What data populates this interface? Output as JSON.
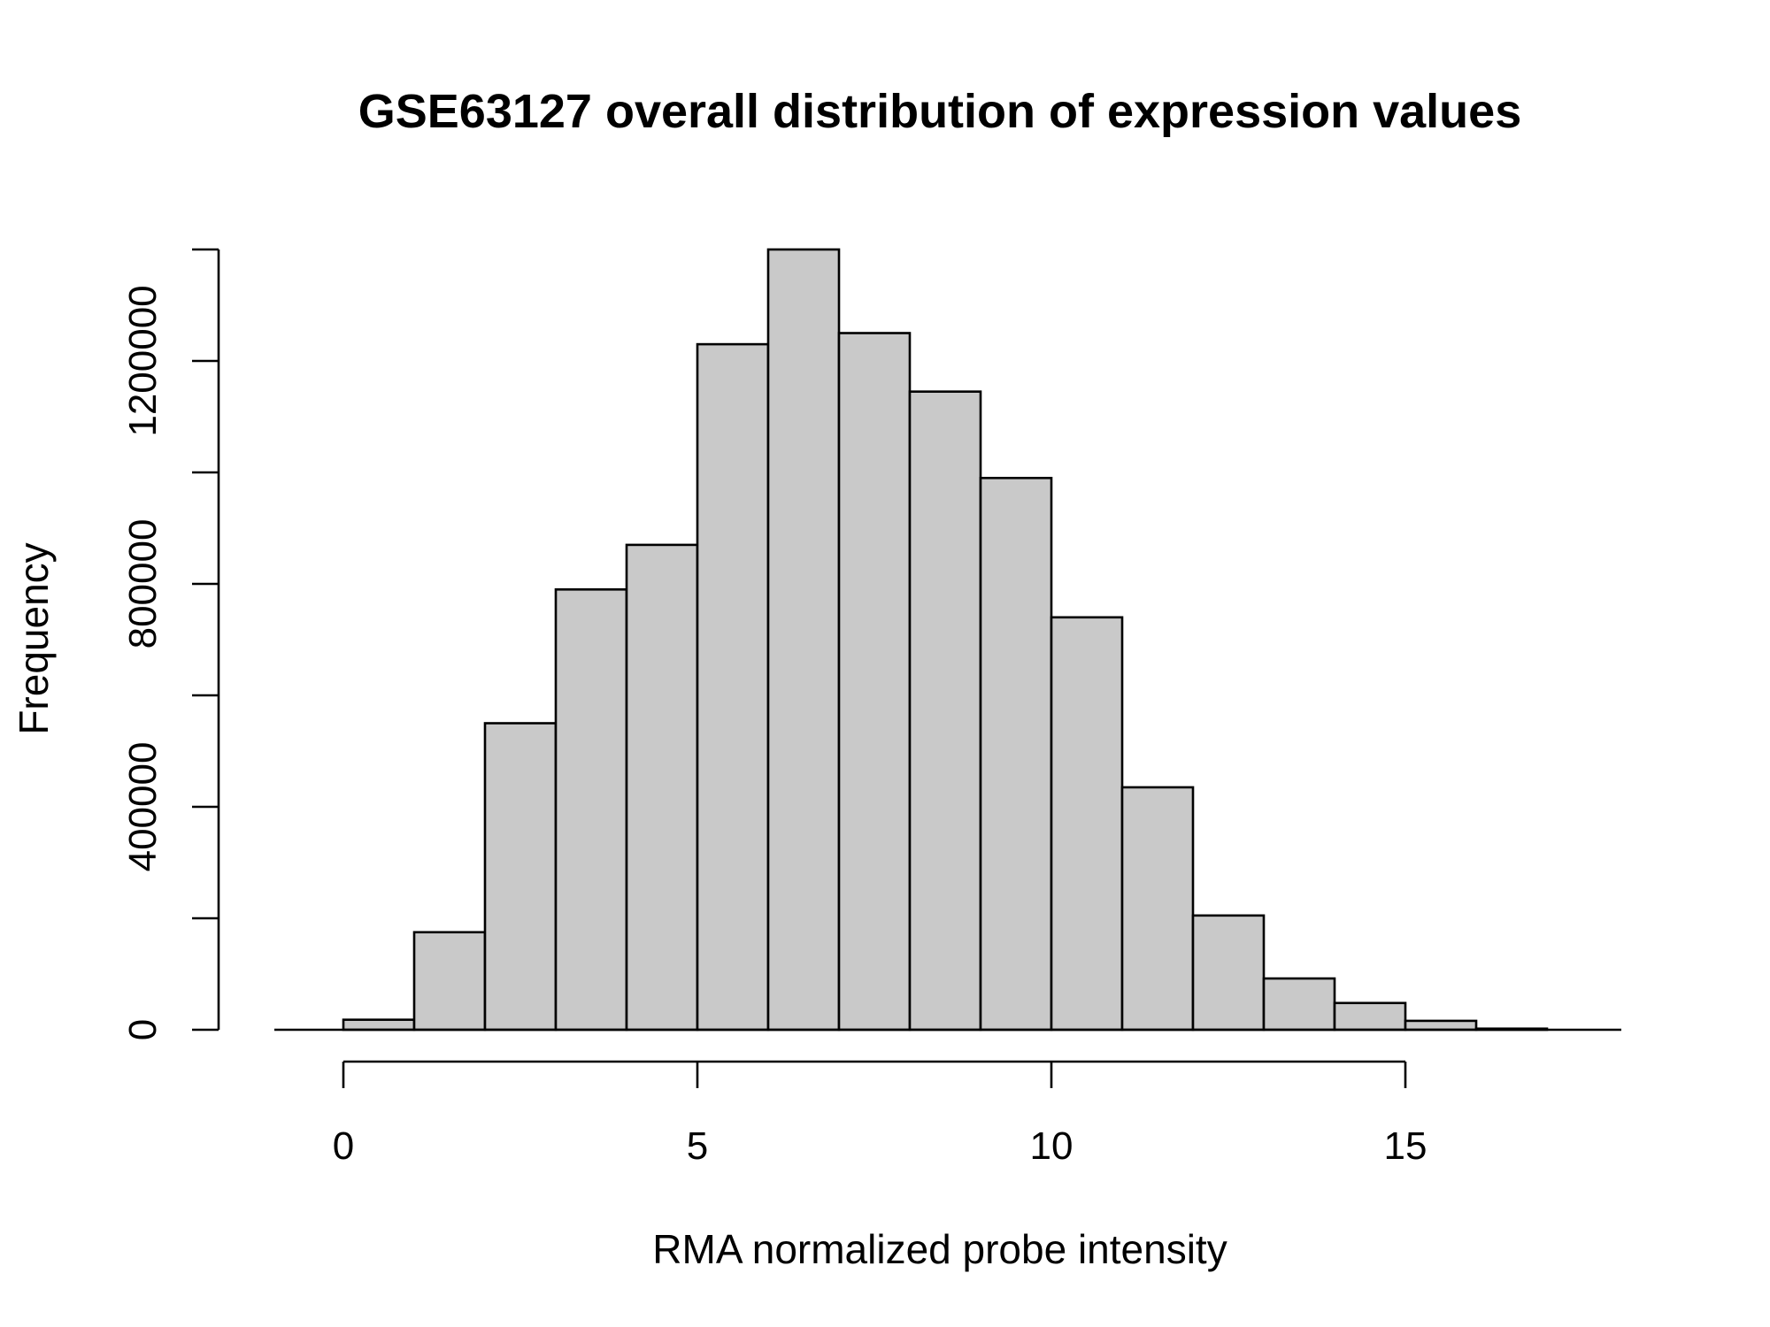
{
  "chart_data": {
    "type": "bar",
    "title": "GSE63127 overall distribution of expression values",
    "xlabel": "RMA normalized probe intensity",
    "ylabel": "Frequency",
    "bins": [
      {
        "x0": 0,
        "x1": 1,
        "value": 18000
      },
      {
        "x0": 1,
        "x1": 2,
        "value": 175000
      },
      {
        "x0": 2,
        "x1": 3,
        "value": 550000
      },
      {
        "x0": 3,
        "x1": 4,
        "value": 790000
      },
      {
        "x0": 4,
        "x1": 5,
        "value": 870000
      },
      {
        "x0": 5,
        "x1": 6,
        "value": 1230000
      },
      {
        "x0": 6,
        "x1": 7,
        "value": 1400000
      },
      {
        "x0": 7,
        "x1": 8,
        "value": 1250000
      },
      {
        "x0": 8,
        "x1": 9,
        "value": 1145000
      },
      {
        "x0": 9,
        "x1": 10,
        "value": 990000
      },
      {
        "x0": 10,
        "x1": 11,
        "value": 740000
      },
      {
        "x0": 11,
        "x1": 12,
        "value": 435000
      },
      {
        "x0": 12,
        "x1": 13,
        "value": 205000
      },
      {
        "x0": 13,
        "x1": 14,
        "value": 92000
      },
      {
        "x0": 14,
        "x1": 15,
        "value": 48000
      },
      {
        "x0": 15,
        "x1": 16,
        "value": 16000
      },
      {
        "x0": 16,
        "x1": 17,
        "value": 2000
      }
    ],
    "xlim": [
      -1,
      18
    ],
    "ylim": [
      0,
      1400000
    ],
    "x_ticks": [
      0,
      5,
      10,
      15
    ],
    "x_tick_labels": [
      "0",
      "5",
      "10",
      "15"
    ],
    "y_ticks": [
      0,
      200000,
      400000,
      600000,
      800000,
      1000000,
      1200000,
      1400000
    ],
    "y_tick_labels": [
      {
        "value": 0,
        "label": "0"
      },
      {
        "value": 400000,
        "label": "400000"
      },
      {
        "value": 800000,
        "label": "800000"
      },
      {
        "value": 1200000,
        "label": "1200000"
      }
    ],
    "grid": false,
    "legend": "none",
    "bar_color": "#c9c9c9",
    "edge_color": "#000000"
  }
}
